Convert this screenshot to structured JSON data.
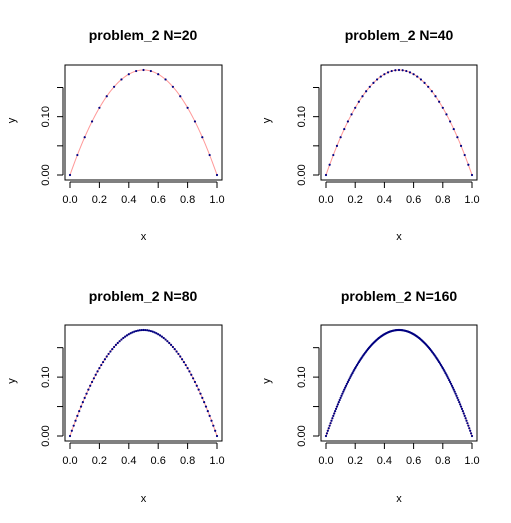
{
  "chart_data": [
    {
      "type": "scatter",
      "title": "problem_2    N=20",
      "xlabel": "x",
      "ylabel": "y",
      "xlim": [
        0,
        1
      ],
      "ylim": [
        0,
        0.18
      ],
      "xticks": [
        "0.0",
        "0.2",
        "0.4",
        "0.6",
        "0.8",
        "1.0"
      ],
      "yticks": [
        "0.00",
        "0.10"
      ],
      "n": 20,
      "series": [
        {
          "kind": "line",
          "color": "#ff9999",
          "function": "2 * x * (1 - x) * 0.18 / 0.5"
        },
        {
          "kind": "points",
          "color": "#000080",
          "function": "2 * x * (1 - x) * 0.18 / 0.5"
        }
      ]
    },
    {
      "type": "scatter",
      "title": "problem_2    N=40",
      "xlabel": "x",
      "ylabel": "y",
      "xlim": [
        0,
        1
      ],
      "ylim": [
        0,
        0.18
      ],
      "xticks": [
        "0.0",
        "0.2",
        "0.4",
        "0.6",
        "0.8",
        "1.0"
      ],
      "yticks": [
        "0.00",
        "0.10"
      ],
      "n": 40,
      "series": [
        {
          "kind": "line",
          "color": "#ff9999",
          "function": "2 * x * (1 - x) * 0.18 / 0.5"
        },
        {
          "kind": "points",
          "color": "#000080",
          "function": "2 * x * (1 - x) * 0.18 / 0.5"
        }
      ]
    },
    {
      "type": "scatter",
      "title": "problem_2    N=80",
      "xlabel": "x",
      "ylabel": "y",
      "xlim": [
        0,
        1
      ],
      "ylim": [
        0,
        0.18
      ],
      "xticks": [
        "0.0",
        "0.2",
        "0.4",
        "0.6",
        "0.8",
        "1.0"
      ],
      "yticks": [
        "0.00",
        "0.10"
      ],
      "n": 80,
      "series": [
        {
          "kind": "line",
          "color": "#ff9999",
          "function": "2 * x * (1 - x) * 0.18 / 0.5"
        },
        {
          "kind": "points",
          "color": "#000080",
          "function": "2 * x * (1 - x) * 0.18 / 0.5"
        }
      ]
    },
    {
      "type": "scatter",
      "title": "problem_2    N=160",
      "xlabel": "x",
      "ylabel": "y",
      "xlim": [
        0,
        1
      ],
      "ylim": [
        0,
        0.18
      ],
      "xticks": [
        "0.0",
        "0.2",
        "0.4",
        "0.6",
        "0.8",
        "1.0"
      ],
      "yticks": [
        "0.00",
        "0.10"
      ],
      "n": 160,
      "series": [
        {
          "kind": "line",
          "color": "#ff9999",
          "function": "2 * x * (1 - x) * 0.18 / 0.5"
        },
        {
          "kind": "points",
          "color": "#000080",
          "function": "2 * x * (1 - x) * 0.18 / 0.5"
        }
      ]
    }
  ]
}
